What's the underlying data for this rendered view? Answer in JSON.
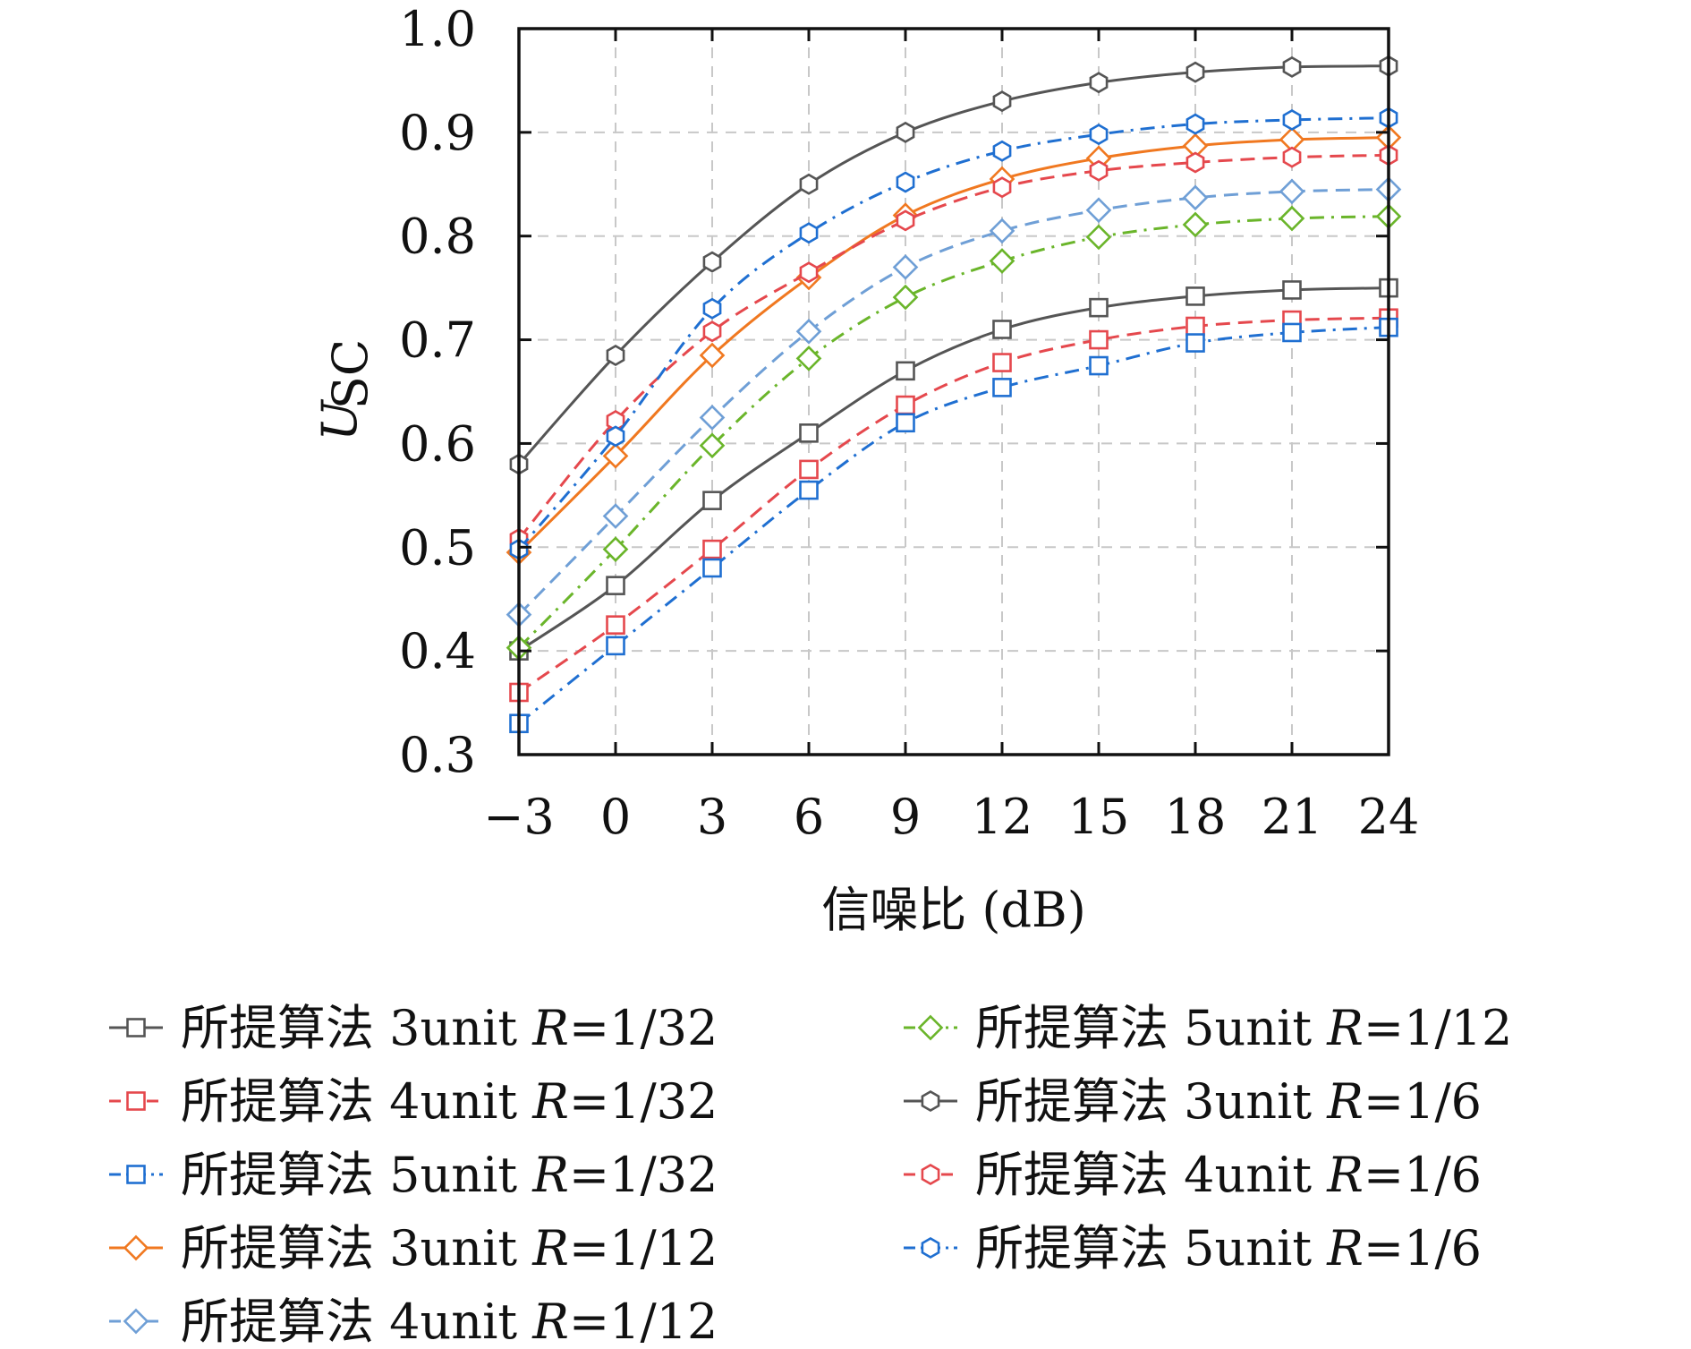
{
  "chart_data": {
    "type": "line",
    "title": "",
    "xlabel": "信噪比 (dB)",
    "ylabel": {
      "main": "U",
      "sub": "SC"
    },
    "x": [
      -3,
      0,
      3,
      6,
      9,
      12,
      15,
      18,
      21,
      24
    ],
    "x_tick_labels": [
      "−3",
      "0",
      "3",
      "6",
      "9",
      "12",
      "15",
      "18",
      "21",
      "24"
    ],
    "y_ticks": [
      0.3,
      0.4,
      0.5,
      0.6,
      0.7,
      0.8,
      0.9,
      1.0
    ],
    "y_tick_labels": [
      "0.3",
      "0.4",
      "0.5",
      "0.6",
      "0.7",
      "0.8",
      "0.9",
      "1.0"
    ],
    "xlim": [
      -3,
      24
    ],
    "ylim": [
      0.3,
      1.0
    ],
    "grid": true,
    "legend_position": "bottom",
    "series": [
      {
        "name": {
          "text": "所提算法 3unit ",
          "r": "R",
          "val": "=1/32"
        },
        "color": "#555555",
        "dash": "solid",
        "marker": "square",
        "values": [
          0.4,
          0.463,
          0.545,
          0.61,
          0.67,
          0.71,
          0.731,
          0.742,
          0.748,
          0.75
        ]
      },
      {
        "name": {
          "text": "所提算法 4unit ",
          "r": "R",
          "val": "=1/32"
        },
        "color": "#e5484d",
        "dash": "dashed",
        "marker": "square",
        "values": [
          0.36,
          0.425,
          0.498,
          0.575,
          0.637,
          0.678,
          0.7,
          0.713,
          0.719,
          0.721
        ]
      },
      {
        "name": {
          "text": "所提算法 5unit ",
          "r": "R",
          "val": "=1/32"
        },
        "color": "#1f6fd1",
        "dash": "dashdot",
        "marker": "square",
        "values": [
          0.33,
          0.405,
          0.48,
          0.555,
          0.62,
          0.654,
          0.675,
          0.697,
          0.707,
          0.712
        ]
      },
      {
        "name": {
          "text": "所提算法 3unit ",
          "r": "R",
          "val": "=1/12"
        },
        "color": "#f07820",
        "dash": "solid",
        "marker": "diamond",
        "values": [
          0.495,
          0.588,
          0.685,
          0.76,
          0.82,
          0.855,
          0.875,
          0.887,
          0.893,
          0.895
        ]
      },
      {
        "name": {
          "text": "所提算法 4unit ",
          "r": "R",
          "val": "=1/12"
        },
        "color": "#6f9fd6",
        "dash": "dashed",
        "marker": "diamond",
        "values": [
          0.435,
          0.53,
          0.625,
          0.708,
          0.77,
          0.805,
          0.825,
          0.837,
          0.843,
          0.845
        ]
      },
      {
        "name": {
          "text": "所提算法 5unit ",
          "r": "R",
          "val": "=1/12"
        },
        "color": "#6ab52a",
        "dash": "dashdot",
        "marker": "diamond",
        "values": [
          0.403,
          0.498,
          0.598,
          0.682,
          0.741,
          0.776,
          0.799,
          0.811,
          0.817,
          0.819
        ]
      },
      {
        "name": {
          "text": "所提算法 3unit ",
          "r": "R",
          "val": "=1/6"
        },
        "color": "#555555",
        "dash": "solid",
        "marker": "hexagon",
        "values": [
          0.58,
          0.685,
          0.775,
          0.85,
          0.9,
          0.93,
          0.948,
          0.958,
          0.963,
          0.964
        ]
      },
      {
        "name": {
          "text": "所提算法 4unit ",
          "r": "R",
          "val": "=1/6"
        },
        "color": "#e5484d",
        "dash": "dashed",
        "marker": "hexagon",
        "values": [
          0.508,
          0.622,
          0.708,
          0.765,
          0.815,
          0.847,
          0.863,
          0.871,
          0.876,
          0.878
        ]
      },
      {
        "name": {
          "text": "所提算法 5unit ",
          "r": "R",
          "val": "=1/6"
        },
        "color": "#1f6fd1",
        "dash": "dashdot",
        "marker": "hexagon",
        "values": [
          0.498,
          0.607,
          0.73,
          0.803,
          0.852,
          0.882,
          0.898,
          0.908,
          0.912,
          0.914
        ]
      }
    ]
  }
}
